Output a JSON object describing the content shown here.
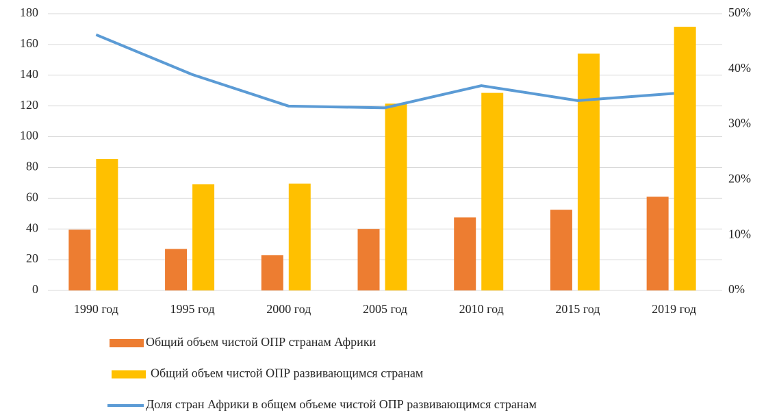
{
  "chart_data": {
    "type": "bar",
    "categories": [
      "1990 год",
      "1995 год",
      "2000 год",
      "2005 год",
      "2010 год",
      "2015 год",
      "2019 год"
    ],
    "series": [
      {
        "name": "Общий объем чистой ОПР странам Африки",
        "color": "#ed7d31",
        "values": [
          39.5,
          27,
          23,
          40,
          47.5,
          52.5,
          61
        ]
      },
      {
        "name": "Общий объем чистой ОПР развивающимся странам",
        "color": "#ffc000",
        "values": [
          85.5,
          69,
          69.5,
          121.5,
          128.5,
          154,
          171.5
        ]
      },
      {
        "name": "Доля стран Африки в общем объеме чистой ОПР развивающимся странам",
        "color": "#5b9bd5",
        "type": "line",
        "axis": "y2",
        "values": [
          46.2,
          39.0,
          33.3,
          33.0,
          37.0,
          34.3,
          35.6
        ]
      }
    ],
    "ylim": [
      0,
      180
    ],
    "yticks": [
      0,
      20,
      40,
      60,
      80,
      100,
      120,
      140,
      160,
      180
    ],
    "y2lim": [
      0,
      50
    ],
    "y2ticks": [
      {
        "value": 0,
        "label": "0%"
      },
      {
        "value": 10,
        "label": "10%"
      },
      {
        "value": 20,
        "label": "20%"
      },
      {
        "value": 30,
        "label": "30%"
      },
      {
        "value": 40,
        "label": "40%"
      },
      {
        "value": 50,
        "label": "50%"
      }
    ],
    "grid": true,
    "legend": "bottom"
  }
}
